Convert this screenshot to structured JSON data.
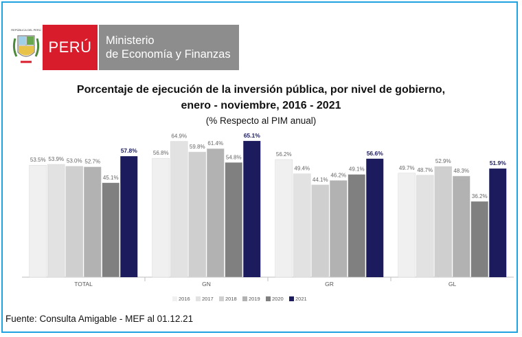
{
  "logo": {
    "country": "PERÚ",
    "ministry_line1": "Ministerio",
    "ministry_line2": "de Economía y Finanzas",
    "shield_text": "REPÚBLICA DEL PERÚ",
    "colors": {
      "red": "#d91c2c",
      "gray": "#8d8d8d"
    }
  },
  "chart_data": {
    "type": "bar",
    "title": "Porcentaje de ejecución de la inversión pública, por nivel de gobierno,",
    "title_line2": "enero - noviembre, 2016 - 2021",
    "subtitle": "(% Respecto al PIM anual)",
    "categories": [
      "TOTAL",
      "GN",
      "GR",
      "GL"
    ],
    "ylim": [
      0,
      70
    ],
    "grid": false,
    "legend_position": "bottom",
    "series": [
      {
        "name": "2016",
        "color": "#f0f0f0",
        "values": [
          53.5,
          56.8,
          56.2,
          49.7
        ],
        "labels": [
          "53.5%",
          "56.8%",
          "56.2%",
          "49.7%"
        ]
      },
      {
        "name": "2017",
        "color": "#e2e2e2",
        "values": [
          53.9,
          64.9,
          49.4,
          48.7
        ],
        "labels": [
          "53.9%",
          "64.9%",
          "49.4%",
          "48.7%"
        ]
      },
      {
        "name": "2018",
        "color": "#cfcfcf",
        "values": [
          53.0,
          59.8,
          44.1,
          52.9
        ],
        "labels": [
          "53.0%",
          "59.8%",
          "44.1%",
          "52.9%"
        ]
      },
      {
        "name": "2019",
        "color": "#b2b2b2",
        "values": [
          52.7,
          61.4,
          46.2,
          48.3
        ],
        "labels": [
          "52.7%",
          "61.4%",
          "46.2%",
          "48.3%"
        ]
      },
      {
        "name": "2020",
        "color": "#808080",
        "values": [
          45.1,
          54.8,
          49.1,
          36.2
        ],
        "labels": [
          "45.1%",
          "54.8%",
          "49.1%",
          "36.2%"
        ]
      },
      {
        "name": "2021",
        "color": "#1b1b5e",
        "values": [
          57.8,
          65.1,
          56.6,
          51.9
        ],
        "labels": [
          "57.8%",
          "65.1%",
          "56.6%",
          "51.9%"
        ]
      }
    ],
    "highlight_label_color": "#1b1b5e",
    "label_color": "#666666"
  },
  "footer": "Fuente: Consulta Amigable - MEF al 01.12.21"
}
